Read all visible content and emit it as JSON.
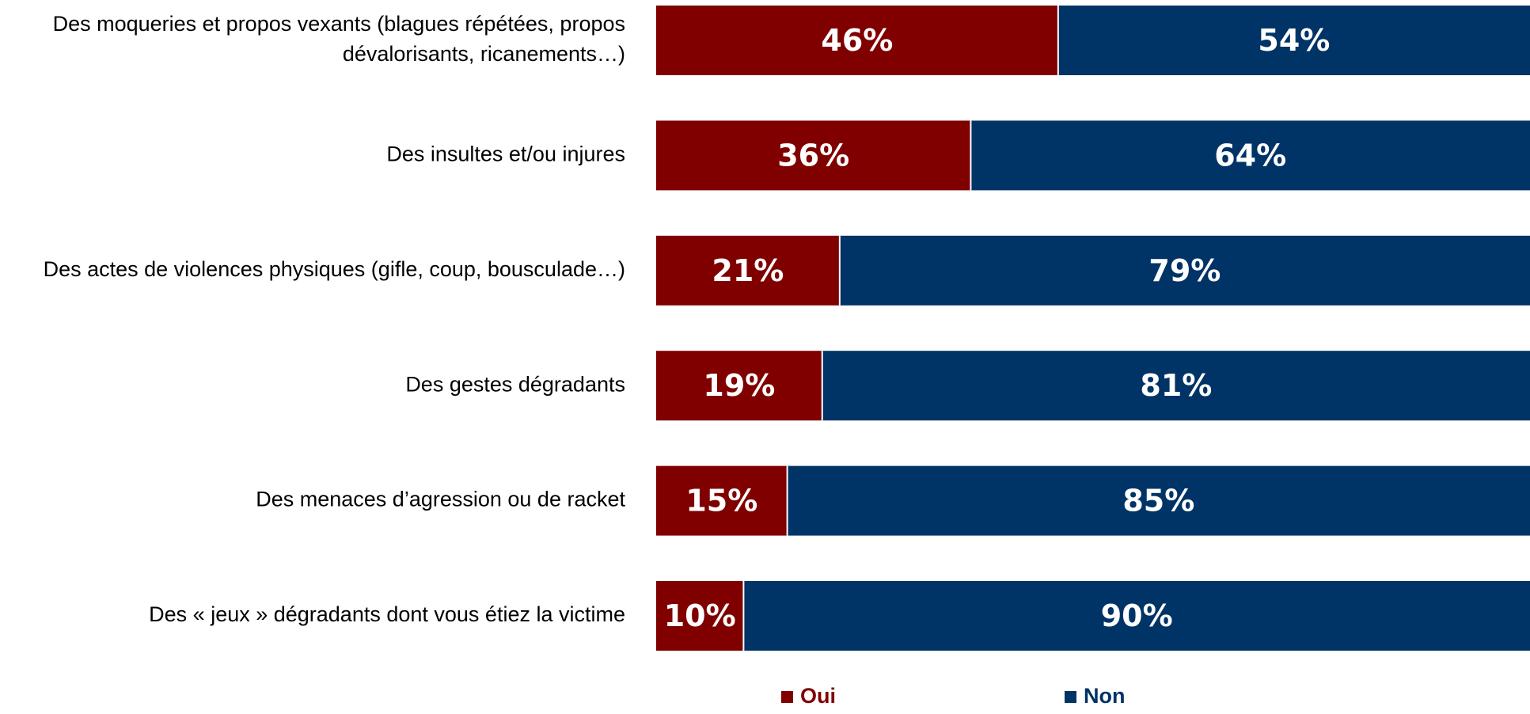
{
  "chart_data": {
    "type": "bar",
    "orientation": "horizontal",
    "stacked": true,
    "percent_stacked": true,
    "value_format": "percent",
    "categories": [
      [
        "Des moqueries et propos vexants (blagues répétées, propos",
        "dévalorisants, ricanements…)"
      ],
      [
        "Des insultes et/ou injures"
      ],
      [
        "Des actes de violences physiques (gifle, coup, bousculade…)"
      ],
      [
        "Des gestes dégradants"
      ],
      [
        "Des menaces d’agression ou de racket"
      ],
      [
        "Des « jeux » dégradants dont vous étiez la victime"
      ]
    ],
    "series": [
      {
        "name": "Oui",
        "color": "#800000",
        "values": [
          46,
          36,
          21,
          19,
          15,
          10
        ]
      },
      {
        "name": "Non",
        "color": "#003366",
        "values": [
          54,
          64,
          79,
          81,
          85,
          90
        ]
      }
    ],
    "xlim": [
      0,
      100
    ],
    "grid": false,
    "legend_position": "bottom"
  }
}
